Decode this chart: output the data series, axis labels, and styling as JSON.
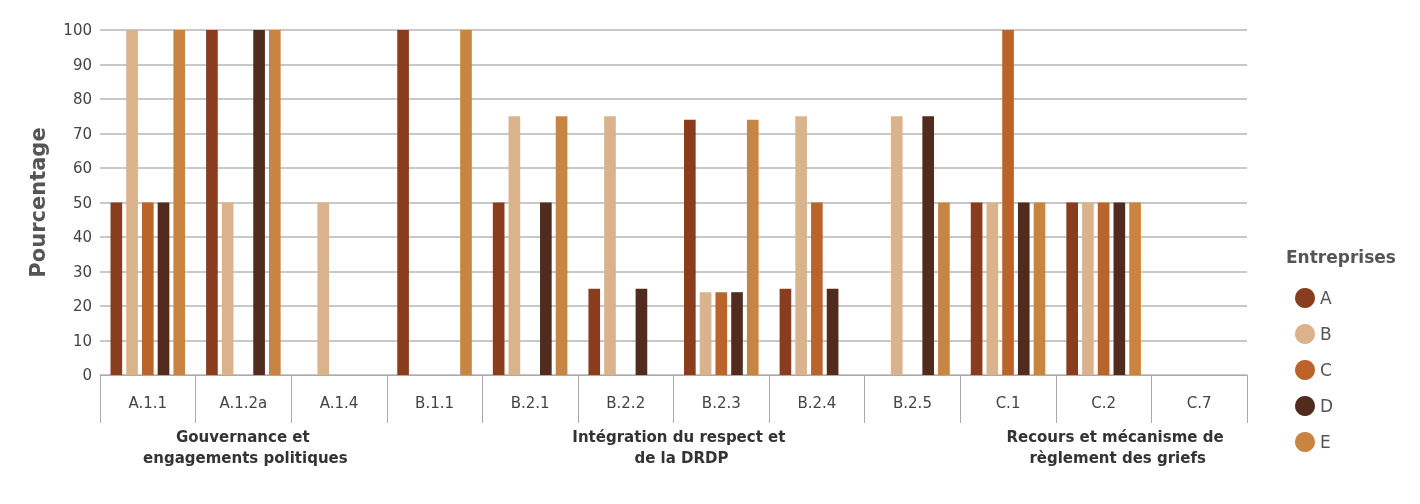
{
  "chart_data": {
    "type": "bar",
    "ylabel": "Pourcentage",
    "legend_title": "Entreprises",
    "categories": [
      "A.1.1",
      "A.1.2a",
      "A.1.4",
      "B.1.1",
      "B.2.1",
      "B.2.2",
      "B.2.3",
      "B.2.4",
      "B.2.5",
      "C.1",
      "C.2",
      "C.7"
    ],
    "series": [
      {
        "name": "A",
        "color": "#8a3d1e",
        "values": [
          50,
          100,
          null,
          100,
          50,
          25,
          74,
          25,
          null,
          50,
          50,
          null
        ]
      },
      {
        "name": "B",
        "color": "#dab28c",
        "values": [
          100,
          50,
          50,
          null,
          75,
          75,
          24,
          75,
          75,
          50,
          50,
          null
        ]
      },
      {
        "name": "C",
        "color": "#bb6328",
        "values": [
          50,
          null,
          null,
          null,
          null,
          null,
          24,
          50,
          null,
          100,
          50,
          null
        ]
      },
      {
        "name": "D",
        "color": "#512b1d",
        "values": [
          50,
          100,
          null,
          null,
          50,
          25,
          24,
          25,
          75,
          50,
          50,
          null
        ]
      },
      {
        "name": "E",
        "color": "#c98442",
        "values": [
          100,
          100,
          null,
          100,
          75,
          null,
          74,
          null,
          50,
          50,
          50,
          null
        ]
      }
    ],
    "ylim": [
      0,
      100
    ],
    "yticks": [
      0,
      10,
      20,
      30,
      40,
      50,
      60,
      70,
      80,
      90,
      100
    ],
    "grid": "y",
    "legend": "right",
    "annotations": [
      "Gouvernance et engagements politiques",
      "Intégration du respect et de la DRDP",
      "Recours et mécanisme de règlement des griefs"
    ]
  }
}
